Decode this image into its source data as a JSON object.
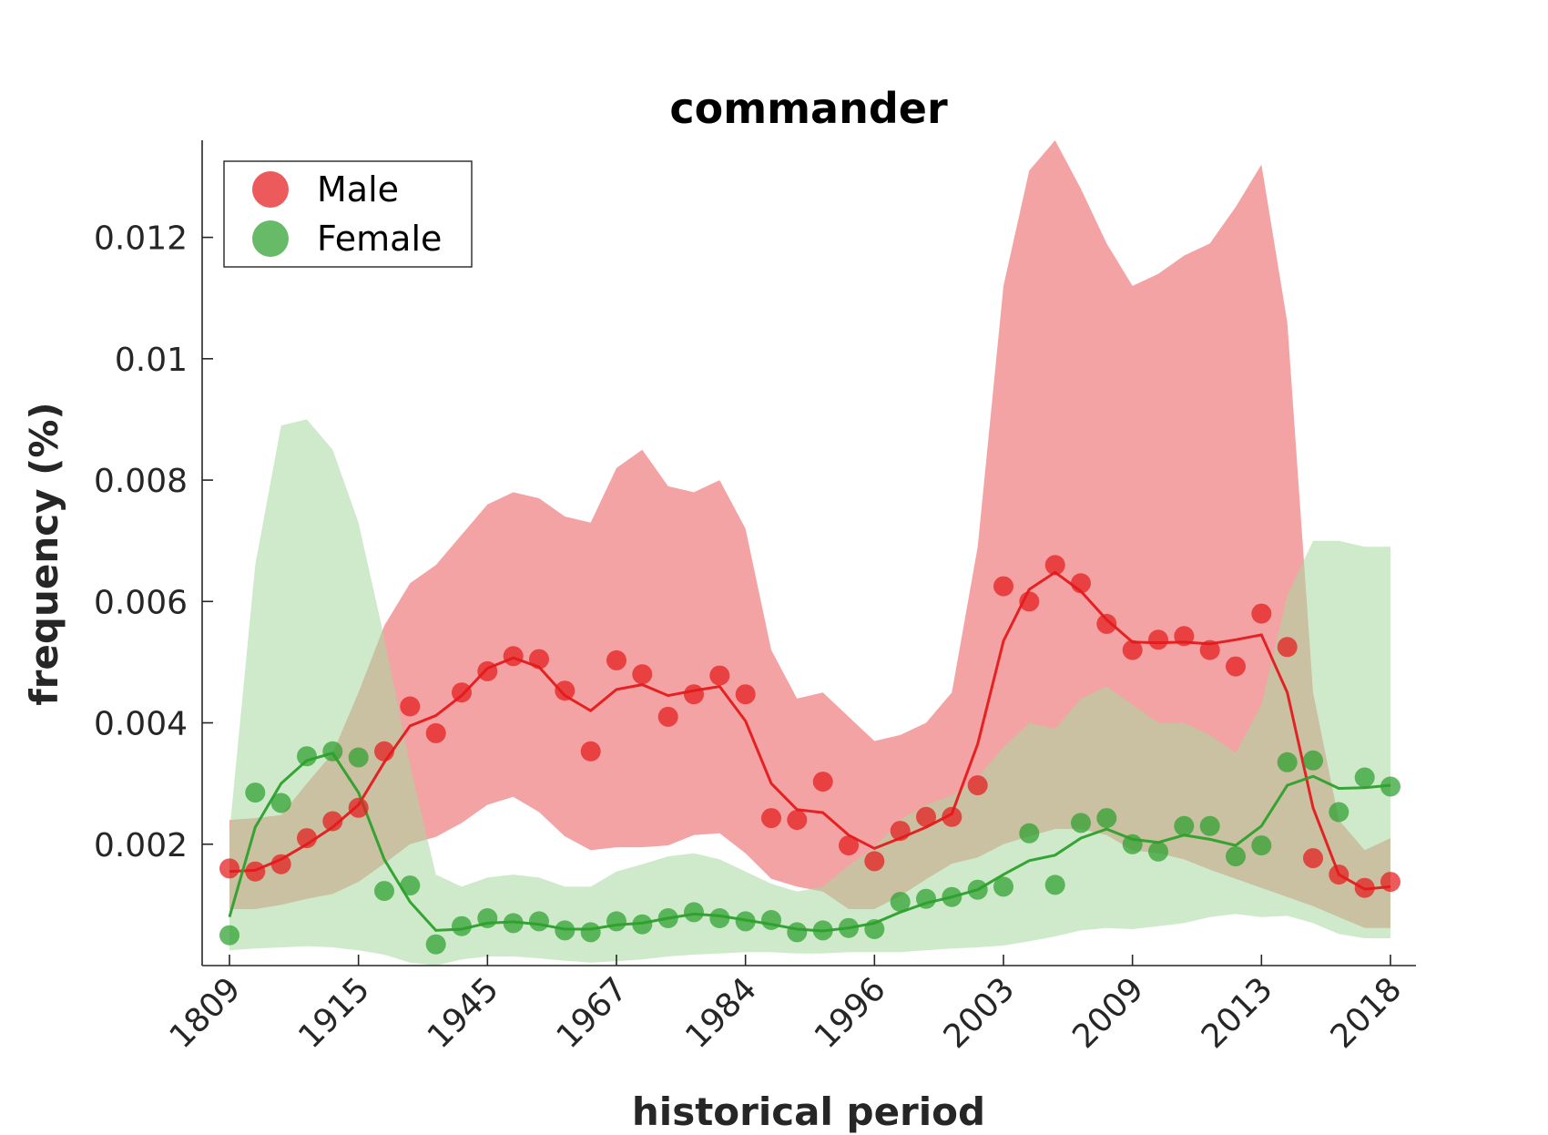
{
  "chart_data": {
    "type": "line",
    "title": "commander",
    "xlabel": "historical period",
    "ylabel": "frequency (%)",
    "x_tick_labels": [
      "1809",
      "1915",
      "1945",
      "1967",
      "1984",
      "1996",
      "2003",
      "2009",
      "2013",
      "2018"
    ],
    "x_tick_indices": [
      0,
      5,
      10,
      15,
      20,
      25,
      30,
      35,
      40,
      45
    ],
    "n_points": 46,
    "ylim": [
      0.0,
      0.0136
    ],
    "y_ticks": [
      0.002,
      0.004,
      0.006,
      0.008,
      0.01,
      0.012
    ],
    "y_tick_labels": [
      "0.002",
      "0.004",
      "0.006",
      "0.008",
      "0.01",
      "0.012"
    ],
    "grid": false,
    "legend_position": "top-left",
    "series": [
      {
        "name": "Male",
        "color": "#e41a1c",
        "band_color": "#f4a3a4",
        "points": [
          0.0016,
          0.00155,
          0.00167,
          0.0021,
          0.00238,
          0.0026,
          0.00353,
          0.00427,
          0.00383,
          0.0045,
          0.00485,
          0.0051,
          0.00505,
          0.00453,
          0.00353,
          0.00503,
          0.0048,
          0.0041,
          0.00447,
          0.00478,
          0.00447,
          0.00243,
          0.0024,
          0.00303,
          0.00198,
          0.00172,
          0.00222,
          0.00245,
          0.00245,
          0.00297,
          0.00625,
          0.006,
          0.0066,
          0.0063,
          0.00563,
          0.0052,
          0.00537,
          0.00543,
          0.0052,
          0.00493,
          0.0058,
          0.00525,
          0.00177,
          0.0015,
          0.00128,
          0.00138
        ],
        "line": [
          0.00155,
          0.00157,
          0.00175,
          0.002,
          0.00228,
          0.00265,
          0.00335,
          0.00395,
          0.00412,
          0.00445,
          0.0049,
          0.00507,
          0.00492,
          0.00445,
          0.0042,
          0.00455,
          0.00463,
          0.00445,
          0.00453,
          0.0046,
          0.00403,
          0.003,
          0.00257,
          0.00252,
          0.00215,
          0.00193,
          0.0021,
          0.00228,
          0.0025,
          0.00365,
          0.00535,
          0.0062,
          0.00648,
          0.00617,
          0.0057,
          0.00533,
          0.00532,
          0.00533,
          0.0053,
          0.00537,
          0.00545,
          0.0045,
          0.0026,
          0.0015,
          0.00126,
          0.0013
        ],
        "upper": [
          0.0024,
          0.00243,
          0.00248,
          0.003,
          0.0035,
          0.0045,
          0.0056,
          0.0063,
          0.0066,
          0.0071,
          0.0076,
          0.0078,
          0.0077,
          0.0074,
          0.0073,
          0.0082,
          0.0085,
          0.0079,
          0.0078,
          0.008,
          0.0072,
          0.0052,
          0.0044,
          0.0045,
          0.0041,
          0.0037,
          0.0038,
          0.004,
          0.0045,
          0.0069,
          0.0112,
          0.0131,
          0.0136,
          0.0128,
          0.0119,
          0.0112,
          0.0114,
          0.0117,
          0.0119,
          0.0125,
          0.0132,
          0.0106,
          0.0045,
          0.0024,
          0.0019,
          0.0021
        ],
        "lower": [
          0.00093,
          0.00093,
          0.001,
          0.0011,
          0.00118,
          0.00138,
          0.00168,
          0.002,
          0.00212,
          0.00235,
          0.00265,
          0.00278,
          0.00253,
          0.00213,
          0.0019,
          0.00195,
          0.00195,
          0.00198,
          0.00215,
          0.00218,
          0.00185,
          0.00143,
          0.0013,
          0.00122,
          0.00093,
          0.00093,
          0.00115,
          0.00142,
          0.00168,
          0.00178,
          0.002,
          0.00213,
          0.00225,
          0.00225,
          0.00215,
          0.0019,
          0.00185,
          0.00175,
          0.00158,
          0.00143,
          0.00128,
          0.00113,
          0.00098,
          0.0008,
          0.00062,
          0.00062
        ]
      },
      {
        "name": "Female",
        "color": "#2ca02c",
        "band_color": "#a8d8a0",
        "points": [
          0.0005,
          0.00285,
          0.00268,
          0.00345,
          0.00353,
          0.00343,
          0.00123,
          0.00132,
          0.00035,
          0.00065,
          0.00078,
          0.0007,
          0.00073,
          0.00058,
          0.00055,
          0.00073,
          0.00068,
          0.00078,
          0.00088,
          0.00078,
          0.00073,
          0.00075,
          0.00055,
          0.00058,
          0.00062,
          0.0006,
          0.00105,
          0.0011,
          0.00113,
          0.00125,
          0.0013,
          0.00218,
          0.00133,
          0.00235,
          0.00243,
          0.002,
          0.00188,
          0.0023,
          0.0023,
          0.0018,
          0.00198,
          0.00335,
          0.00338,
          0.00253,
          0.0031,
          0.00295
        ],
        "line": [
          0.0008,
          0.00228,
          0.003,
          0.00338,
          0.0035,
          0.00285,
          0.00175,
          0.00105,
          0.00058,
          0.0006,
          0.0007,
          0.00072,
          0.00068,
          0.0006,
          0.0006,
          0.00067,
          0.0007,
          0.00078,
          0.00085,
          0.00082,
          0.00075,
          0.00068,
          0.0006,
          0.00057,
          0.00062,
          0.0007,
          0.00088,
          0.00103,
          0.00113,
          0.00125,
          0.0015,
          0.00173,
          0.00182,
          0.0021,
          0.00225,
          0.00208,
          0.00203,
          0.00215,
          0.00208,
          0.00198,
          0.0023,
          0.00297,
          0.00312,
          0.00292,
          0.00293,
          0.00297
        ],
        "upper": [
          0.0022,
          0.0066,
          0.0089,
          0.009,
          0.0085,
          0.0073,
          0.0054,
          0.0033,
          0.0015,
          0.0013,
          0.00145,
          0.0015,
          0.00145,
          0.0013,
          0.0013,
          0.00155,
          0.00167,
          0.0018,
          0.00185,
          0.00175,
          0.00155,
          0.00135,
          0.00122,
          0.0013,
          0.00165,
          0.00195,
          0.0024,
          0.00265,
          0.0028,
          0.0031,
          0.0036,
          0.004,
          0.0039,
          0.0044,
          0.0046,
          0.0043,
          0.004,
          0.004,
          0.0038,
          0.0035,
          0.0043,
          0.0061,
          0.007,
          0.007,
          0.0069,
          0.0069
        ],
        "lower": [
          0.00025,
          0.00028,
          0.0003,
          0.00032,
          0.0003,
          0.00025,
          0.00018,
          5e-05,
          0.0,
          0.0001,
          0.00015,
          0.00015,
          0.00012,
          8e-05,
          5e-05,
          7e-05,
          0.0001,
          0.00015,
          0.00018,
          0.0002,
          0.00022,
          0.00022,
          0.0002,
          0.0002,
          0.00022,
          0.00022,
          0.00022,
          0.00025,
          0.00028,
          0.0003,
          0.00033,
          0.0004,
          0.00048,
          0.00058,
          0.00062,
          0.0006,
          0.00065,
          0.0007,
          0.0008,
          0.00085,
          0.0008,
          0.00082,
          0.0007,
          0.00052,
          0.00045,
          0.00045
        ]
      }
    ]
  }
}
